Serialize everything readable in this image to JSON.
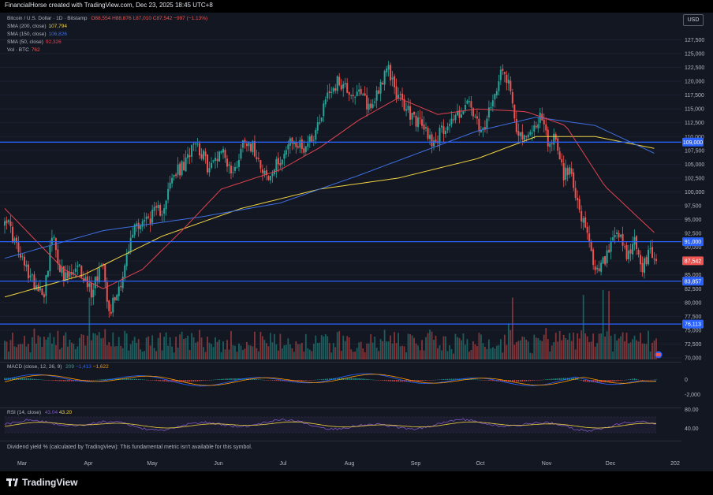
{
  "header": {
    "title": "FinancialHorse created with TradingView.com, Dec 23, 2025 18:45 UTC+8"
  },
  "currency_button": "USD",
  "legend": {
    "symbol": "Bitcoin / U.S. Dollar · 1D · Bitstamp",
    "ohlc": {
      "o": "O88,554",
      "h": "H88,876",
      "l": "L87,010",
      "c": "C87,542",
      "chg": "−997 (−1.13%)"
    },
    "sma200": {
      "label": "SMA (200, close)",
      "value": "107,794",
      "color": "#f0d343"
    },
    "sma150": {
      "label": "SMA (150, close)",
      "value": "106,826",
      "color": "#3d6fe0"
    },
    "sma50": {
      "label": "SMA (50, close)",
      "value": "92,326",
      "color": "#e0424f"
    },
    "vol": {
      "label": "Vol · BTC",
      "value": "762"
    }
  },
  "macd_legend": {
    "label": "MACD (close, 12, 26, 9)",
    "v1": "209",
    "v2": "−1,413",
    "v3": "−1,622"
  },
  "rsi_legend": {
    "label": "RSI (14, close)",
    "v1": "43.04",
    "v2": "43.20"
  },
  "dividend_note": "Dividend yield % (calculated by TradingView): This fundamental metric isn't available for this symbol.",
  "brand": "TradingView",
  "colors": {
    "up": "#26a69a",
    "down": "#ef5350",
    "hline": "#2962ff",
    "bg": "#131722"
  },
  "chart_data": [
    {
      "type": "candlestick",
      "title": "Bitcoin / U.S. Dollar · 1D · Bitstamp",
      "y_ticks": [
        "127,500",
        "125,000",
        "122,500",
        "120,000",
        "117,500",
        "115,000",
        "112,500",
        "110,000",
        "107,500",
        "105,000",
        "102,500",
        "100,000",
        "97,500",
        "95,000",
        "92,500",
        "90,000",
        "87,500",
        "85,000",
        "82,500",
        "80,000",
        "77,500",
        "75,000",
        "72,500",
        "70,000"
      ],
      "ylim": [
        70000,
        130000
      ],
      "x_ticks": [
        "Mar",
        "Apr",
        "May",
        "Jun",
        "Jul",
        "Aug",
        "Sep",
        "Oct",
        "Nov",
        "Dec",
        "202"
      ],
      "price_labels": [
        {
          "label": "109,000",
          "value": 109000,
          "type": "hline"
        },
        {
          "label": "91,000",
          "value": 91000,
          "type": "hline"
        },
        {
          "label": "83,857",
          "value": 83857,
          "type": "hline"
        },
        {
          "label": "76,113",
          "value": 76113,
          "type": "hline"
        },
        {
          "label": "87,542",
          "value": 87542,
          "type": "last"
        }
      ],
      "close_anchors": [
        [
          0,
          96000
        ],
        [
          8,
          88000
        ],
        [
          14,
          84000
        ],
        [
          20,
          82000
        ],
        [
          24,
          92000
        ],
        [
          30,
          84000
        ],
        [
          38,
          86000
        ],
        [
          44,
          82000
        ],
        [
          50,
          88000
        ],
        [
          53,
          78000
        ],
        [
          60,
          85000
        ],
        [
          66,
          94000
        ],
        [
          72,
          95000
        ],
        [
          80,
          97000
        ],
        [
          86,
          103000
        ],
        [
          92,
          105000
        ],
        [
          96,
          110000
        ],
        [
          104,
          104000
        ],
        [
          110,
          108000
        ],
        [
          116,
          103000
        ],
        [
          122,
          110000
        ],
        [
          128,
          107000
        ],
        [
          134,
          102000
        ],
        [
          140,
          106000
        ],
        [
          146,
          109000
        ],
        [
          152,
          108000
        ],
        [
          158,
          111000
        ],
        [
          164,
          118000
        ],
        [
          170,
          120000
        ],
        [
          176,
          118000
        ],
        [
          182,
          117000
        ],
        [
          186,
          115000
        ],
        [
          190,
          119000
        ],
        [
          195,
          122000
        ],
        [
          200,
          117000
        ],
        [
          206,
          114000
        ],
        [
          212,
          112000
        ],
        [
          218,
          109000
        ],
        [
          224,
          112000
        ],
        [
          230,
          114000
        ],
        [
          236,
          116000
        ],
        [
          242,
          110000
        ],
        [
          248,
          116000
        ],
        [
          252,
          123000
        ],
        [
          256,
          120000
        ],
        [
          260,
          112000
        ],
        [
          264,
          109000
        ],
        [
          268,
          111000
        ],
        [
          272,
          114000
        ],
        [
          276,
          109000
        ],
        [
          280,
          110000
        ],
        [
          284,
          103000
        ],
        [
          288,
          104000
        ],
        [
          292,
          96000
        ],
        [
          296,
          92000
        ],
        [
          300,
          85000
        ],
        [
          304,
          87000
        ],
        [
          308,
          90000
        ],
        [
          312,
          92000
        ],
        [
          316,
          88000
        ],
        [
          320,
          91000
        ],
        [
          324,
          86000
        ],
        [
          328,
          89000
        ],
        [
          331,
          87542
        ]
      ],
      "series": [
        {
          "name": "SMA (200, close)",
          "last": 107794,
          "color": "#f0d343",
          "anchors": [
            [
              0,
              81000
            ],
            [
              40,
              85000
            ],
            [
              80,
              92000
            ],
            [
              120,
              97000
            ],
            [
              160,
              100500
            ],
            [
              200,
              102500
            ],
            [
              240,
              106000
            ],
            [
              270,
              110000
            ],
            [
              300,
              110000
            ],
            [
              331,
              107794
            ]
          ]
        },
        {
          "name": "SMA (150, close)",
          "last": 106826,
          "color": "#3d6fe0",
          "anchors": [
            [
              0,
              88000
            ],
            [
              50,
              93000
            ],
            [
              100,
              95500
            ],
            [
              140,
              98000
            ],
            [
              180,
              103000
            ],
            [
              210,
              107000
            ],
            [
              240,
              111000
            ],
            [
              270,
              113500
            ],
            [
              300,
              112000
            ],
            [
              331,
              106826
            ]
          ]
        },
        {
          "name": "SMA (50, close)",
          "last": 92326,
          "color": "#e0424f",
          "anchors": [
            [
              0,
              97000
            ],
            [
              30,
              86000
            ],
            [
              50,
              82500
            ],
            [
              70,
              86000
            ],
            [
              90,
              93000
            ],
            [
              110,
              100500
            ],
            [
              140,
              104000
            ],
            [
              160,
              108000
            ],
            [
              180,
              113000
            ],
            [
              200,
              117000
            ],
            [
              220,
              114000
            ],
            [
              240,
              115000
            ],
            [
              265,
              114500
            ],
            [
              285,
              112000
            ],
            [
              305,
              101000
            ],
            [
              331,
              92326
            ]
          ]
        }
      ]
    },
    {
      "type": "bar",
      "title": "Vol · BTC",
      "last_value": 762
    },
    {
      "type": "line",
      "title": "MACD (close, 12, 26, 9)",
      "y_ticks": [
        "0",
        "-2,000"
      ],
      "values": [
        209,
        -1413,
        -1622
      ]
    },
    {
      "type": "line",
      "title": "RSI (14, close)",
      "y_ticks": [
        "80.00",
        "40.00"
      ],
      "values": [
        43.04,
        43.2
      ]
    }
  ]
}
